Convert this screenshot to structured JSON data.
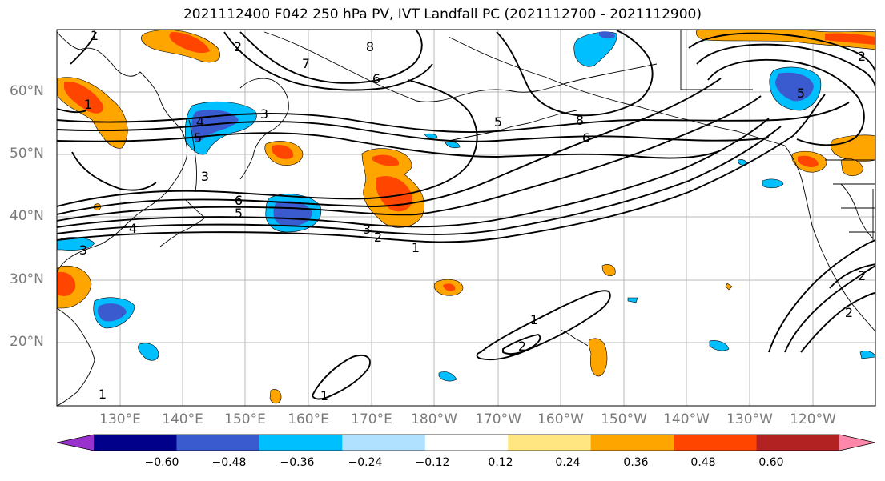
{
  "title": "2021112400 F042 250 hPa PV, IVT Landfall PC (2021112700 - 2021112900)",
  "lat_labels": [
    "60°N",
    "50°N",
    "40°N",
    "30°N",
    "20°N"
  ],
  "lon_labels": [
    "130°E",
    "140°E",
    "150°E",
    "160°E",
    "170°E",
    "180°W",
    "170°W",
    "160°W",
    "150°W",
    "140°W",
    "130°W",
    "120°W"
  ],
  "colorbar": {
    "ticks": [
      "−0.60",
      "−0.48",
      "−0.36",
      "−0.24",
      "−0.12",
      "0.12",
      "0.24",
      "0.36",
      "0.48",
      "0.60"
    ],
    "colors": [
      "#9932cc",
      "#00008b",
      "#3a5bd0",
      "#00bfff",
      "#b0e2ff",
      "#ffffff",
      "#ffe680",
      "#ffa500",
      "#ff4500",
      "#b22222",
      "#ff88aa"
    ]
  },
  "contour_labels": [
    "1",
    "2",
    "8",
    "7",
    "6",
    "3",
    "4",
    "5",
    "6",
    "5",
    "8",
    "6",
    "5",
    "2",
    "1",
    "6",
    "5",
    "4",
    "3",
    "3",
    "2",
    "1",
    "3",
    "1",
    "2",
    "1",
    "2",
    "2",
    "1"
  ],
  "colors": {
    "positive_mid": "#ffa500",
    "positive_high": "#ff4500",
    "negative_mid": "#3a5bd0",
    "negative_light": "#00bfff"
  }
}
